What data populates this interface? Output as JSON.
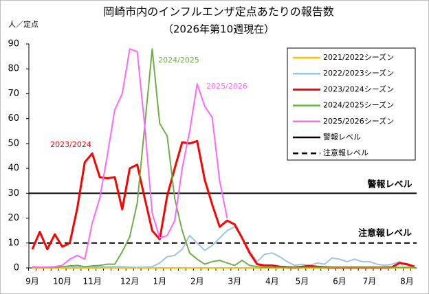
{
  "chart_data": {
    "type": "line",
    "title": "岡崎市内のインフルエンザ定点あたりの報告数",
    "subtitle": "（2026年第10週現在）",
    "y_label": "人／定点",
    "categories": [
      "9月",
      null,
      null,
      null,
      "10月",
      null,
      null,
      null,
      "11月",
      null,
      null,
      null,
      null,
      "12月",
      null,
      null,
      null,
      "1月",
      null,
      null,
      null,
      null,
      "2月",
      null,
      null,
      null,
      null,
      "3月",
      null,
      null,
      null,
      null,
      "4月",
      null,
      null,
      null,
      "5月",
      null,
      null,
      null,
      null,
      "6月",
      null,
      null,
      null,
      "7月",
      null,
      null,
      null,
      null,
      "8月",
      null
    ],
    "ylim": [
      0,
      90
    ],
    "yticks": [
      0,
      10,
      20,
      30,
      40,
      50,
      60,
      70,
      80,
      90
    ],
    "series": [
      {
        "name": "2021/2022シーズン",
        "color": "#ffc000",
        "values": [
          0,
          0,
          0,
          0,
          0,
          0,
          0,
          0,
          0,
          0,
          0,
          0,
          0,
          0,
          0,
          0,
          0,
          0,
          0,
          0,
          0,
          0,
          0,
          0,
          0,
          0,
          0,
          0,
          0,
          0,
          0,
          0,
          0,
          0,
          0,
          0,
          0,
          0,
          0,
          0,
          0,
          0,
          0,
          0,
          0,
          0,
          0,
          0,
          0,
          0,
          0,
          0
        ]
      },
      {
        "name": "2022/2023シーズン",
        "color": "#9dc3e6",
        "values": [
          0.5,
          0.2,
          0.3,
          0.2,
          0.5,
          0.5,
          0.3,
          0.5,
          0.5,
          0.5,
          0.5,
          0.5,
          0.5,
          0.3,
          0.2,
          0.3,
          0.5,
          2,
          4.5,
          5,
          7.5,
          13,
          10,
          7,
          9,
          12,
          15,
          16.5,
          12,
          7,
          2.5,
          5.5,
          6,
          4.5,
          2.5,
          1,
          1.5,
          1,
          2,
          1.5,
          4,
          3.5,
          2.5,
          3.5,
          2.5,
          2.5,
          1.5,
          1,
          1.5,
          2.5,
          1,
          0.5
        ]
      },
      {
        "name": "2023/2024シーズン",
        "color": "#ff0000",
        "width": 3,
        "values": [
          7.5,
          14.5,
          7.5,
          13.5,
          8.5,
          10,
          24,
          42.5,
          46,
          36.5,
          36,
          36.5,
          23.5,
          40,
          41.5,
          28,
          15,
          11.5,
          29,
          40,
          50.5,
          50,
          51,
          35.5,
          25.5,
          16.5,
          19,
          17.5,
          12,
          6,
          1.5,
          1,
          1,
          0.5,
          0.3,
          0.2,
          0.5,
          0.8,
          0.5,
          0.3,
          0.2,
          0.2,
          0.2,
          0.2,
          0.2,
          0.2,
          0.2,
          0.2,
          0.3,
          2,
          1.5,
          0.5
        ]
      },
      {
        "name": "2024/2025シーズン",
        "color": "#70ad47",
        "values": [
          0.5,
          0.3,
          0.3,
          0.3,
          0.5,
          0.8,
          1,
          0.5,
          0.8,
          1,
          1.5,
          1.5,
          6.5,
          12.5,
          26,
          57,
          88,
          58,
          53,
          28,
          15,
          6,
          3.5,
          1.5,
          2.5,
          3,
          2,
          1,
          3,
          1,
          0.5,
          0.2,
          0.2,
          0.2,
          0.2,
          0.2,
          0.2,
          0.2,
          0.2,
          0.2,
          0.2,
          0.2,
          0.2,
          0.2,
          0.2,
          0.2,
          0.2,
          0.2,
          0.2,
          0.2,
          0.2,
          0.2
        ]
      },
      {
        "name": "2025/2026シーズン",
        "color": "#ff66ff",
        "values": [
          0.5,
          0.3,
          0.3,
          0.5,
          1,
          3.5,
          5,
          3.5,
          18,
          28,
          45,
          63.5,
          70,
          88,
          87,
          57,
          22,
          12,
          13,
          19,
          40,
          55,
          74,
          65,
          60.5,
          35,
          20,
          null,
          null,
          null,
          null,
          null,
          null,
          null,
          null,
          null,
          null,
          null,
          null,
          null,
          null,
          null,
          null,
          null,
          null,
          null,
          null,
          null,
          null,
          null,
          null,
          null
        ]
      }
    ],
    "levels": [
      {
        "label": "警報レベル",
        "value": 30,
        "dash": false
      },
      {
        "label": "注意報レベル",
        "value": 10,
        "dash": true
      }
    ],
    "annotations": [
      {
        "text": "2023/2024",
        "color": "#ff0000"
      },
      {
        "text": "2024/2025",
        "color": "#70ad47"
      },
      {
        "text": "2025/2026",
        "color": "#ff66ff"
      }
    ]
  }
}
